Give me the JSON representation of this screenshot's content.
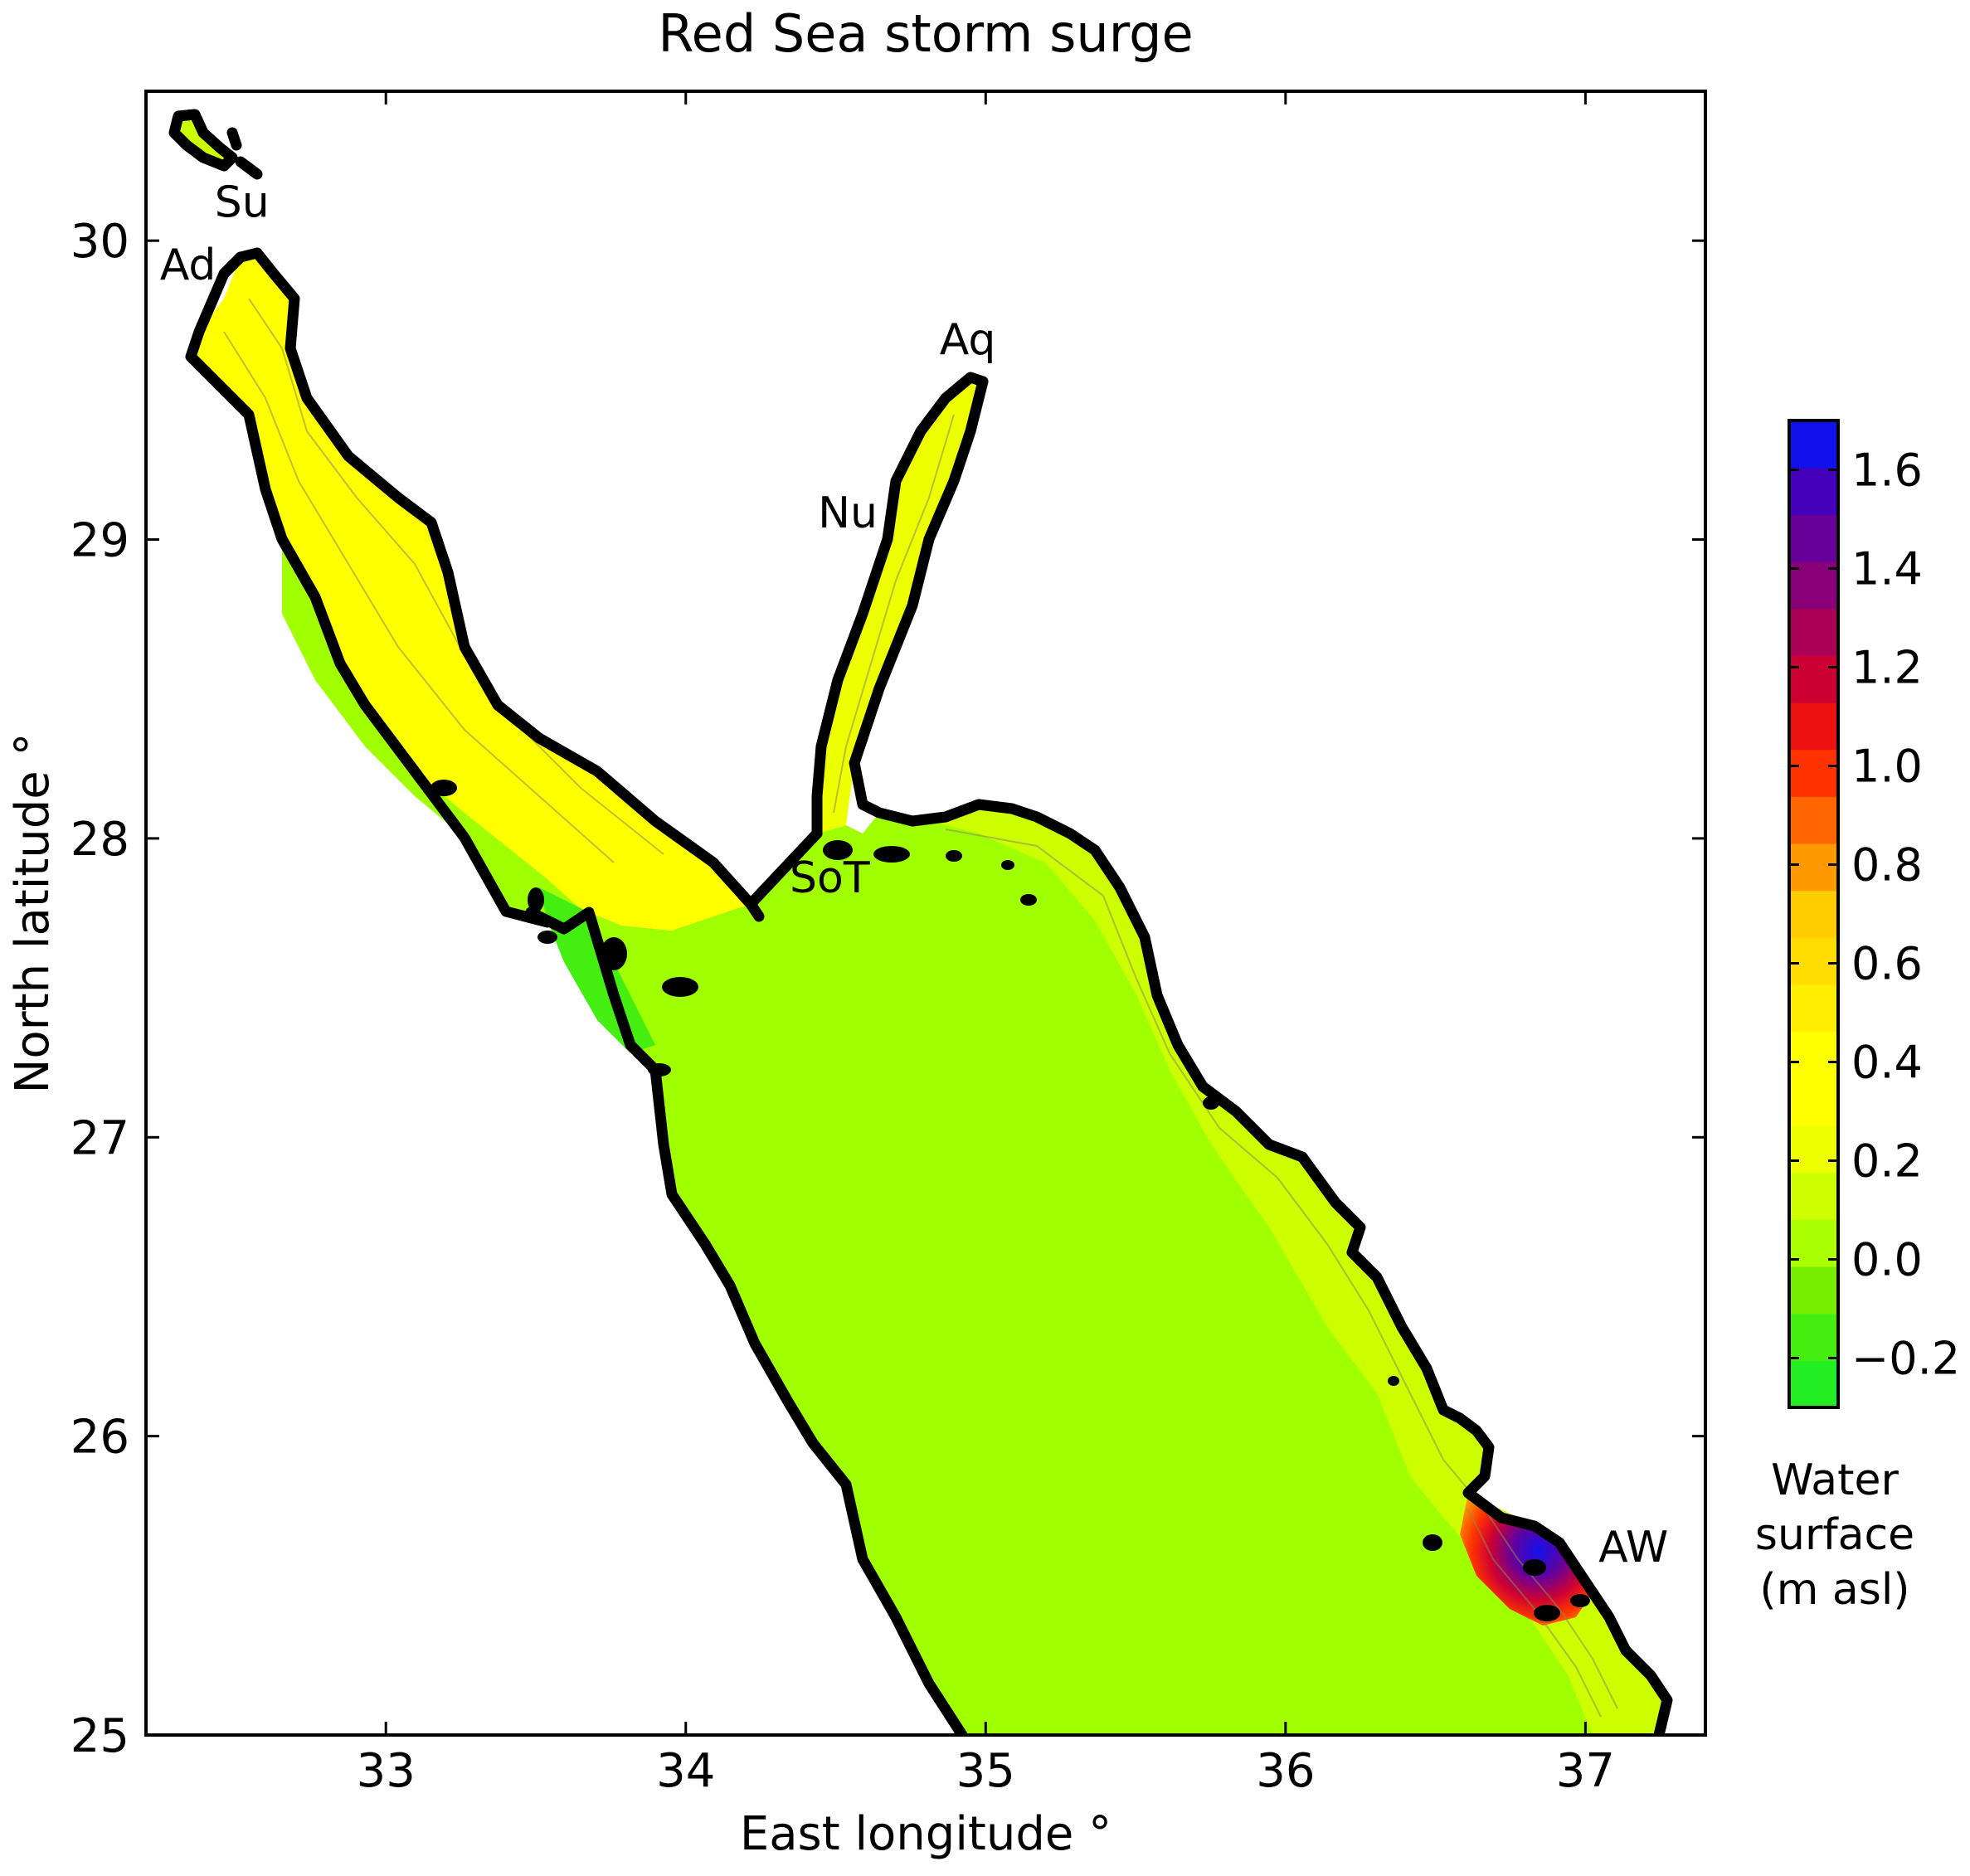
{
  "title": "Red Sea storm surge",
  "xaxis": {
    "label": "East longitude °",
    "range": [
      32.2,
      37.4
    ],
    "ticks": [
      33,
      34,
      35,
      36,
      37
    ],
    "tick_labels": [
      "33",
      "34",
      "35",
      "36",
      "37"
    ]
  },
  "yaxis": {
    "label": "North latitude °",
    "range": [
      25,
      30.5
    ],
    "ticks": [
      25,
      26,
      27,
      28,
      29,
      30
    ],
    "tick_labels": [
      "25",
      "26",
      "27",
      "28",
      "29",
      "30"
    ]
  },
  "colorbar": {
    "title_lines": [
      "Water",
      "surface",
      "(m asl)"
    ],
    "range": [
      -0.3,
      1.7
    ],
    "ticks": [
      -0.2,
      0.0,
      0.2,
      0.4,
      0.6,
      0.8,
      1.0,
      1.2,
      1.4,
      1.6
    ],
    "tick_labels": [
      "−0.2",
      "0.0",
      "0.2",
      "0.4",
      "0.6",
      "0.8",
      "1.0",
      "1.2",
      "1.4",
      "1.6"
    ],
    "colors": [
      "#22ee22",
      "#44ee11",
      "#77ee00",
      "#aaff00",
      "#ccff00",
      "#eeff00",
      "#ffff00",
      "#ffff00",
      "#ffee00",
      "#ffdd00",
      "#ffcc00",
      "#ff9900",
      "#ff6600",
      "#ff3300",
      "#ee1111",
      "#cc0033",
      "#aa0055",
      "#880077",
      "#660099",
      "#4400bb",
      "#1111ee"
    ]
  },
  "places": [
    {
      "label": "Su",
      "lon": 32.52,
      "lat": 30.08
    },
    {
      "label": "Ad",
      "lon": 32.34,
      "lat": 29.87
    },
    {
      "label": "Aq",
      "lon": 34.94,
      "lat": 29.62
    },
    {
      "label": "Nu",
      "lon": 34.54,
      "lat": 29.04
    },
    {
      "label": "SoT",
      "lon": 34.48,
      "lat": 27.82
    },
    {
      "label": "AW",
      "lon": 37.16,
      "lat": 25.58
    }
  ],
  "fill_colors": {
    "sea": "#a0ff00",
    "shelf": "#ccff00",
    "shallow": "#eeff00",
    "gulf": "#ffff00",
    "low_green": "#44ee11",
    "surge_gradient": [
      "#ffdd00",
      "#ff9900",
      "#ff3300",
      "#cc0033",
      "#660099",
      "#1111ee"
    ]
  }
}
